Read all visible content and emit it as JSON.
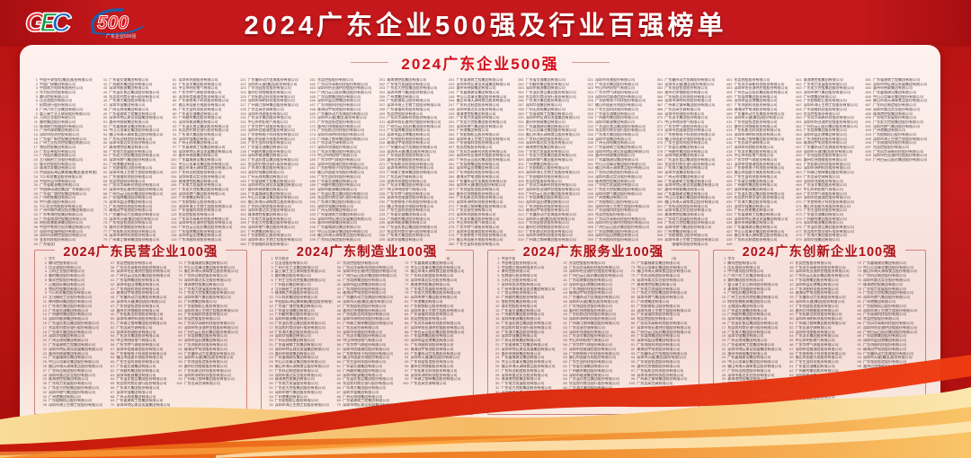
{
  "header": {
    "title": "2024广东企业500强及行业百强榜单",
    "gec_letters": {
      "g": "G",
      "e": "E",
      "c": "C"
    },
    "logo_500_text": "500",
    "logo_500_sub": "广东企业500强"
  },
  "colors": {
    "banner_red": "#c5181c",
    "board_pink": "#f8e3df",
    "title_white": "#ffffff",
    "section_title_red": "#d40f1c",
    "panel_title_red": "#ae1218",
    "ribbon_red": "#e8330f",
    "ribbon_gold": "#f7b254",
    "list_text": "#4a413e"
  },
  "sections": {
    "main": {
      "title": "2024广东企业500强"
    },
    "private": {
      "title": "2024广东民营企业100强"
    },
    "manufacturing": {
      "title": "2024广东制造业100强"
    },
    "service": {
      "title": "2024广东服务业100强"
    },
    "innovation": {
      "title": "2024广东创新企业100强"
    }
  },
  "lists": {
    "main": {
      "count": 500,
      "entries": [
        "中国平安保险(集团)股份有限公司",
        "中国广核集团有限公司",
        "中国南方电网有限责任公司",
        "华为投资控股有限公司",
        "腾讯控股有限公司",
        "比亚迪股份有限公司",
        "招商银行股份有限公司",
        "广州汽车工业集团有限公司",
        "富士康工业互联网股份有限公司",
        "万科企业股份有限公司",
        "美的集团股份有限公司",
        "珠海格力电器股份有限公司",
        "广州市建筑集团有限公司",
        "深圳市投资控股有限公司",
        "广东省广新控股集团有限公司",
        "广州工业投资控股集团有限公司",
        "雪松控股集团有限公司",
        "广发证券股份有限公司",
        "广州医药集团有限公司",
        "立讯精密工业股份有限公司",
        "顺丰控股股份有限公司",
        "珠海华发集团有限公司",
        "中国国际海运集装箱(集团)股份有限公司",
        "TCL科技集团股份有限公司",
        "中国外运华南有限公司",
        "广东省能源集团有限公司",
        "中国移动通信集团广东有限公司",
        "广东省广晟控股集团有限公司",
        "广州地铁集团有限公司",
        "中兴通讯股份有限公司",
        "TCL实业控股股份有限公司",
        "广州市城市建设投资集团有限公司",
        "广东粤海控股集团有限公司",
        "广东省旅游控股集团有限公司",
        "明阳智慧能源集团股份公司",
        "中国中铁南方投资集团有限公司",
        "深圳市爱施德股份有限公司",
        "深圳市深粮控股股份有限公司",
        "金发科技股份有限公司",
        "广东省丝绸纺织集团有限公司"
      ]
    },
    "private": {
      "count": 100,
      "entries": [
        "华为投资控股有限公司",
        "腾讯控股有限公司",
        "比亚迪股份有限公司",
        "万科企业股份有限公司",
        "美的集团股份有限公司",
        "顺丰控股股份有限公司",
        "正威国际集团有限公司",
        "雪松控股集团有限公司",
        "TCL科技集团股份有限公司",
        "立讯精密工业股份有限公司",
        "神州数码集团股份有限公司",
        "广东海大集团股份有限公司"
      ]
    },
    "manufacturing": {
      "count": 100,
      "entries": [
        "华为投资控股有限公司",
        "比亚迪股份有限公司",
        "广州汽车工业集团有限公司",
        "富士康工业互联网股份有限公司",
        "美的集团股份有限公司",
        "广州工业投资控股集团有限公司",
        "广州医药集团有限公司",
        "立讯精密工业股份有限公司",
        "珠海格力电器股份有限公司",
        "TCL科技集团股份有限公司",
        "中国国际海运集装箱(集团)股份有限公司",
        "广东省广晟控股集团有限公司"
      ]
    },
    "service": {
      "count": 100,
      "entries": [
        "中国平安保险(集团)股份有限公司",
        "中国电信股份有限公司",
        "中国南方电网有限责任公司",
        "腾讯控股有限公司",
        "招商银行股份有限公司",
        "万科企业股份有限公司",
        "深圳市投资控股有限公司",
        "广州市城市建设投资集团有限公司",
        "广发证券股份有限公司",
        "广州越秀集团股份有限公司",
        "雪松控股集团有限公司",
        "顺丰控股股份有限公司"
      ]
    },
    "innovation": {
      "count": 100,
      "entries": [
        "华为投资控股有限公司",
        "腾讯控股有限公司",
        "比亚迪股份有限公司",
        "中兴通讯股份有限公司",
        "广州汽车工业集团有限公司",
        "美的集团股份有限公司",
        "富士康工业互联网股份有限公司",
        "珠海格力电器股份有限公司",
        "广州医药集团有限公司",
        "广州工业投资控股集团有限公司",
        "明阳智慧能源集团股份公司",
        "正威国际集团有限公司"
      ]
    }
  },
  "filler_pool": [
    "广东省交通集团有限公司",
    "广州越秀集团股份有限公司",
    "深圳市能源集团有限公司",
    "广东温氏食品集团股份有限公司",
    "东莞农村商业银行股份有限公司",
    "广东海大集团股份有限公司",
    "深圳华强集团有限公司",
    "广州无线电集团有限公司",
    "广东省建筑工程集团有限公司",
    "深圳市特区建设发展集团有限公司",
    "惠州市德赛集团有限公司",
    "广东嘉城建设集团有限公司",
    "中山公用事业集团股份有限公司",
    "佛山市海天调味食品股份有限公司",
    "广东科达制造股份有限公司",
    "深圳市桑达实业股份有限公司",
    "珠海港控股集团有限公司",
    "广东电力发展股份有限公司",
    "广东宏大控股集团股份有限公司",
    "深圳市燃气集团股份有限公司",
    "广州港集团有限公司",
    "广东韶钢松山股份有限公司",
    "深圳市海王生物工程股份有限公司",
    "广东银禧科技股份有限公司",
    "东莞控股股份有限公司",
    "广东风华高新科技股份有限公司",
    "深圳市怡亚通供应链股份有限公司",
    "广州白云山医药集团股份有限公司",
    "广东塔牌集团股份有限公司",
    "深圳市盐田港集团有限公司",
    "广东鸿图科技股份有限公司",
    "珠海冠宇电池股份有限公司",
    "广东肇庆动力金属股份有限公司",
    "深圳市天健(集团)股份有限公司",
    "广东领益智造股份有限公司",
    "惠州亿纬锂能股份有限公司",
    "广东拓斯达科技股份有限公司",
    "深圳市洲明科技股份有限公司",
    "广州珠江钢琴集团股份有限公司",
    "广东志高空调有限公司",
    "深圳市兆驰股份有限公司",
    "广东凌丰集团股份有限公司",
    "中山市明阳电气有限公司",
    "广东华特气体股份有限公司",
    "深圳市信维通信股份有限公司",
    "广东依顿电子科技股份有限公司",
    "佛山市国星光电股份有限公司",
    "广东生益科技股份有限公司"
  ]
}
